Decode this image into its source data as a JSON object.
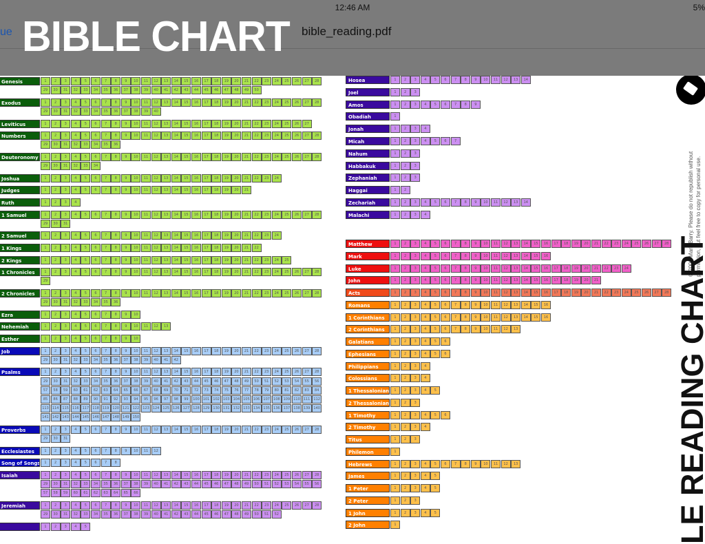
{
  "status_bar": {
    "time": "12:46 AM",
    "battery": "5%"
  },
  "nav": {
    "back_label": "ue",
    "file_name": "bible_reading.pdf"
  },
  "overlay_title": "BIBLE CHART",
  "side": {
    "copyright_line1": "© 2009 Mark Barry.  Please do not republish without",
    "copyright_line2": "permission, but feel free to copy for personal use.",
    "vertical_title": "LE READING CHART"
  },
  "groups": {
    "law": {
      "label": "#0b5e0b",
      "cell": "#a9e34b"
    },
    "wisdom": {
      "label": "#0a0ab8",
      "cell": "#a8cdf7"
    },
    "prophets": {
      "label": "#3a0a9e",
      "cell": "#cc8ff2"
    },
    "gospels": {
      "label": "#ee1010",
      "cell": "#f060c8"
    },
    "acts": {
      "label": "#f04a1a",
      "cell": "#f27858"
    },
    "epistles": {
      "label": "#ff8000",
      "cell": "#ffc04a"
    }
  },
  "left_books": [
    {
      "name": "Genesis",
      "chapters": 50,
      "group": "law"
    },
    {
      "name": "Exodus",
      "chapters": 40,
      "group": "law"
    },
    {
      "name": "Leviticus",
      "chapters": 27,
      "group": "law"
    },
    {
      "name": "Numbers",
      "chapters": 36,
      "group": "law"
    },
    {
      "name": "Deuteronomy",
      "chapters": 34,
      "group": "law"
    },
    {
      "name": "Joshua",
      "chapters": 24,
      "group": "law"
    },
    {
      "name": "Judges",
      "chapters": 21,
      "group": "law"
    },
    {
      "name": "Ruth",
      "chapters": 4,
      "group": "law"
    },
    {
      "name": "1 Samuel",
      "chapters": 31,
      "group": "law"
    },
    {
      "name": "2 Samuel",
      "chapters": 24,
      "group": "law"
    },
    {
      "name": "1 Kings",
      "chapters": 22,
      "group": "law"
    },
    {
      "name": "2 Kings",
      "chapters": 25,
      "group": "law"
    },
    {
      "name": "1 Chronicles",
      "chapters": 29,
      "group": "law"
    },
    {
      "name": "2 Chronicles",
      "chapters": 36,
      "group": "law"
    },
    {
      "name": "Ezra",
      "chapters": 10,
      "group": "law"
    },
    {
      "name": "Nehemiah",
      "chapters": 13,
      "group": "law"
    },
    {
      "name": "Esther",
      "chapters": 10,
      "group": "law"
    },
    {
      "name": "Job",
      "chapters": 42,
      "group": "wisdom"
    },
    {
      "name": "Psalms",
      "chapters": 150,
      "group": "wisdom"
    },
    {
      "name": "Proverbs",
      "chapters": 31,
      "group": "wisdom"
    },
    {
      "name": "Ecclesiastes",
      "chapters": 12,
      "group": "wisdom"
    },
    {
      "name": "Song of Songs",
      "chapters": 8,
      "group": "wisdom"
    },
    {
      "name": "Isaiah",
      "chapters": 66,
      "group": "prophets"
    },
    {
      "name": "Jeremiah",
      "chapters": 52,
      "group": "prophets"
    },
    {
      "name": "",
      "chapters": 5,
      "group": "prophets"
    }
  ],
  "right_books_ot": [
    {
      "name": "Hosea",
      "chapters": 14,
      "group": "prophets"
    },
    {
      "name": "Joel",
      "chapters": 3,
      "group": "prophets"
    },
    {
      "name": "Amos",
      "chapters": 9,
      "group": "prophets"
    },
    {
      "name": "Obadiah",
      "chapters": 1,
      "group": "prophets"
    },
    {
      "name": "Jonah",
      "chapters": 4,
      "group": "prophets"
    },
    {
      "name": "Micah",
      "chapters": 7,
      "group": "prophets"
    },
    {
      "name": "Nahum",
      "chapters": 3,
      "group": "prophets"
    },
    {
      "name": "Habbakuk",
      "chapters": 3,
      "group": "prophets"
    },
    {
      "name": "Zephaniah",
      "chapters": 3,
      "group": "prophets"
    },
    {
      "name": "Haggai",
      "chapters": 2,
      "group": "prophets"
    },
    {
      "name": "Zechariah",
      "chapters": 14,
      "group": "prophets"
    },
    {
      "name": "Malachi",
      "chapters": 4,
      "group": "prophets"
    }
  ],
  "right_books_nt": [
    {
      "name": "Matthew",
      "chapters": 28,
      "group": "gospels"
    },
    {
      "name": "Mark",
      "chapters": 16,
      "group": "gospels"
    },
    {
      "name": "Luke",
      "chapters": 24,
      "group": "gospels"
    },
    {
      "name": "John",
      "chapters": 21,
      "group": "gospels"
    },
    {
      "name": "Acts",
      "chapters": 28,
      "group": "acts"
    },
    {
      "name": "Romans",
      "chapters": 16,
      "group": "epistles"
    },
    {
      "name": "1 Corinthians",
      "chapters": 16,
      "group": "epistles"
    },
    {
      "name": "2 Corinthians",
      "chapters": 13,
      "group": "epistles"
    },
    {
      "name": "Galatians",
      "chapters": 6,
      "group": "epistles"
    },
    {
      "name": "Ephesians",
      "chapters": 6,
      "group": "epistles"
    },
    {
      "name": "Philippians",
      "chapters": 4,
      "group": "epistles"
    },
    {
      "name": "Colossians",
      "chapters": 4,
      "group": "epistles"
    },
    {
      "name": "1 Thessalonians",
      "chapters": 5,
      "group": "epistles"
    },
    {
      "name": "2 Thessalonians",
      "chapters": 3,
      "group": "epistles"
    },
    {
      "name": "1 Timothy",
      "chapters": 6,
      "group": "epistles"
    },
    {
      "name": "2 Timothy",
      "chapters": 4,
      "group": "epistles"
    },
    {
      "name": "Titus",
      "chapters": 3,
      "group": "epistles"
    },
    {
      "name": "Philemon",
      "chapters": 1,
      "group": "epistles"
    },
    {
      "name": "Hebrews",
      "chapters": 13,
      "group": "epistles"
    },
    {
      "name": "James",
      "chapters": 5,
      "group": "epistles"
    },
    {
      "name": "1 Peter",
      "chapters": 5,
      "group": "epistles"
    },
    {
      "name": "2 Peter",
      "chapters": 3,
      "group": "epistles"
    },
    {
      "name": "1 John",
      "chapters": 5,
      "group": "epistles"
    },
    {
      "name": "2 John",
      "chapters": 1,
      "group": "epistles"
    }
  ]
}
